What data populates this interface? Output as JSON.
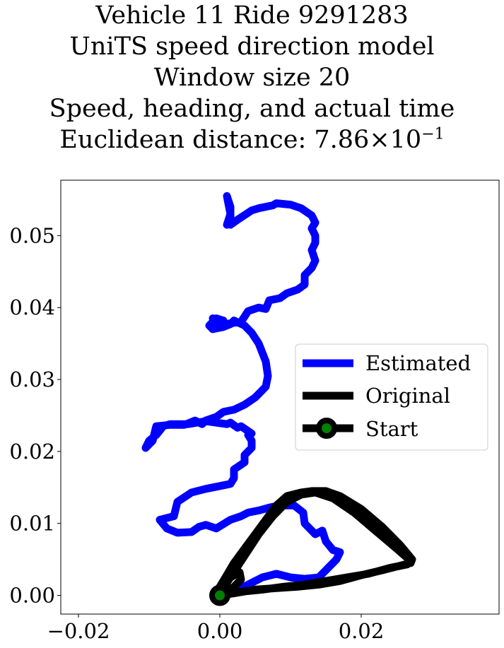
{
  "title_lines": [
    "Vehicle 11 Ride 9291283",
    "UniTS speed direction model",
    "Window size 20",
    "Speed, heading, and actual time"
  ],
  "distance": {
    "label": "Euclidean distance: ",
    "mantissa": "7.86",
    "times": "×",
    "base": "10",
    "exponent": "−1"
  },
  "chart_data": {
    "type": "line",
    "xlim": [
      -0.0225,
      0.0395
    ],
    "ylim": [
      -0.0026,
      0.0577
    ],
    "xticks": [
      -0.02,
      0.0,
      0.02
    ],
    "xtick_labels": [
      "−0.02",
      "0.00",
      "0.02"
    ],
    "yticks": [
      0.0,
      0.01,
      0.02,
      0.03,
      0.04,
      0.05
    ],
    "ytick_labels": [
      "0.00",
      "0.01",
      "0.02",
      "0.03",
      "0.04",
      "0.05"
    ],
    "grid": false,
    "legend_position": "center-right",
    "series": [
      {
        "name": "Estimated",
        "color": "#0000ff",
        "x": [
          0.0,
          0.002,
          0.004,
          0.006,
          0.008,
          0.01,
          0.012,
          0.014,
          0.015,
          0.0165,
          0.017,
          0.016,
          0.015,
          0.0145,
          0.0135,
          0.012,
          0.0118,
          0.0105,
          0.0085,
          0.007,
          0.0055,
          0.004,
          0.003,
          0.0015,
          -0.0005,
          -0.002,
          -0.003,
          -0.004,
          -0.006,
          -0.0075,
          -0.0085,
          -0.0065,
          -0.006,
          -0.004,
          -0.002,
          0.0,
          0.0015,
          0.002,
          0.002,
          0.0035,
          0.0035,
          0.0045,
          0.0045,
          0.004,
          0.0045,
          0.003,
          0.0025,
          0.0015,
          0.001,
          -0.002,
          -0.0045,
          -0.007,
          -0.008,
          -0.009,
          -0.01,
          -0.0105,
          -0.0095,
          -0.009,
          -0.007,
          -0.005,
          -0.0035,
          -0.0025,
          -0.002,
          -0.0005,
          0.0005,
          0.002,
          0.0035,
          0.005,
          0.0065,
          0.0068,
          0.0065,
          0.0055,
          0.0045,
          0.0035,
          0.002,
          0.0015,
          0.0005,
          -0.001,
          -0.0015,
          -0.0005,
          0.0005,
          -0.001,
          -0.0005,
          0.0015,
          0.003,
          0.004,
          0.0055,
          0.0065,
          0.007,
          0.0085,
          0.0095,
          0.011,
          0.012,
          0.012,
          0.013,
          0.0135,
          0.013,
          0.0135,
          0.0135,
          0.013,
          0.0135,
          0.013,
          0.0115,
          0.01,
          0.008,
          0.0075,
          0.0055,
          0.0045,
          0.0025,
          0.0015,
          0.0015,
          0.0015,
          0.001,
          0.0015,
          0.001
        ],
        "y": [
          0.0,
          0.0005,
          0.0015,
          0.0025,
          0.003,
          0.0025,
          0.0023,
          0.0025,
          0.0035,
          0.005,
          0.006,
          0.0063,
          0.0075,
          0.009,
          0.0085,
          0.01,
          0.0115,
          0.0125,
          0.0125,
          0.0122,
          0.0118,
          0.0115,
          0.011,
          0.0105,
          0.0093,
          0.0098,
          0.0095,
          0.0088,
          0.0087,
          0.0093,
          0.0105,
          0.011,
          0.013,
          0.0143,
          0.0148,
          0.0152,
          0.0155,
          0.0163,
          0.0175,
          0.0185,
          0.0195,
          0.0205,
          0.0215,
          0.0223,
          0.0225,
          0.0235,
          0.0233,
          0.024,
          0.0238,
          0.0242,
          0.0238,
          0.0238,
          0.0235,
          0.0223,
          0.0215,
          0.0205,
          0.0215,
          0.0235,
          0.0237,
          0.0237,
          0.0243,
          0.0238,
          0.0243,
          0.0248,
          0.0255,
          0.0258,
          0.0265,
          0.0275,
          0.029,
          0.0305,
          0.0325,
          0.035,
          0.0365,
          0.0375,
          0.0382,
          0.0377,
          0.0373,
          0.037,
          0.0375,
          0.0385,
          0.0382,
          0.0385,
          0.0375,
          0.0378,
          0.038,
          0.0395,
          0.04,
          0.0398,
          0.041,
          0.0413,
          0.042,
          0.0425,
          0.0432,
          0.0445,
          0.0455,
          0.0465,
          0.048,
          0.049,
          0.05,
          0.051,
          0.0518,
          0.0528,
          0.0538,
          0.0543,
          0.0545,
          0.0542,
          0.0538,
          0.0535,
          0.0522,
          0.0515,
          0.0523,
          0.054,
          0.0555,
          0.053,
          0.0515
        ]
      },
      {
        "name": "Original",
        "color": "#000000",
        "x": [
          0.0,
          0.002,
          0.005,
          0.008,
          0.011,
          0.014,
          0.017,
          0.02,
          0.023,
          0.025,
          0.027,
          0.0272,
          0.0255,
          0.023,
          0.02,
          0.017,
          0.015,
          0.013,
          0.0115,
          0.0095,
          0.008,
          0.0065,
          0.005,
          0.0035,
          0.002,
          0.0008,
          0.0,
          -0.0005,
          0.0,
          0.0015,
          0.0028,
          0.003,
          0.002,
          0.001,
          0.0005,
          0.003,
          0.006,
          0.009,
          0.012,
          0.015,
          0.018,
          0.021,
          0.024,
          0.0265,
          0.027,
          0.025,
          0.022,
          0.019,
          0.016,
          0.0135,
          0.0115,
          0.0095,
          0.0075,
          0.0055,
          0.0035,
          0.0015,
          0.0
        ],
        "y": [
          0.0,
          0.0003,
          0.0008,
          0.001,
          0.0012,
          0.0015,
          0.002,
          0.0028,
          0.0035,
          0.004,
          0.0045,
          0.005,
          0.007,
          0.0095,
          0.012,
          0.0138,
          0.0145,
          0.0145,
          0.0143,
          0.0138,
          0.0125,
          0.0105,
          0.0085,
          0.0065,
          0.0045,
          0.0025,
          0.0012,
          0.0005,
          0.0012,
          0.0025,
          0.0032,
          0.0022,
          0.0012,
          0.0005,
          0.0003,
          0.0005,
          0.0008,
          0.0012,
          0.0015,
          0.002,
          0.0025,
          0.003,
          0.0038,
          0.0043,
          0.0048,
          0.0065,
          0.009,
          0.0115,
          0.0135,
          0.0143,
          0.014,
          0.013,
          0.011,
          0.0085,
          0.0055,
          0.0025,
          0.0003
        ]
      },
      {
        "name": "Start",
        "color": "#000000",
        "marker_fill": "#008000",
        "x": [
          0.0
        ],
        "y": [
          0.0
        ]
      }
    ]
  }
}
